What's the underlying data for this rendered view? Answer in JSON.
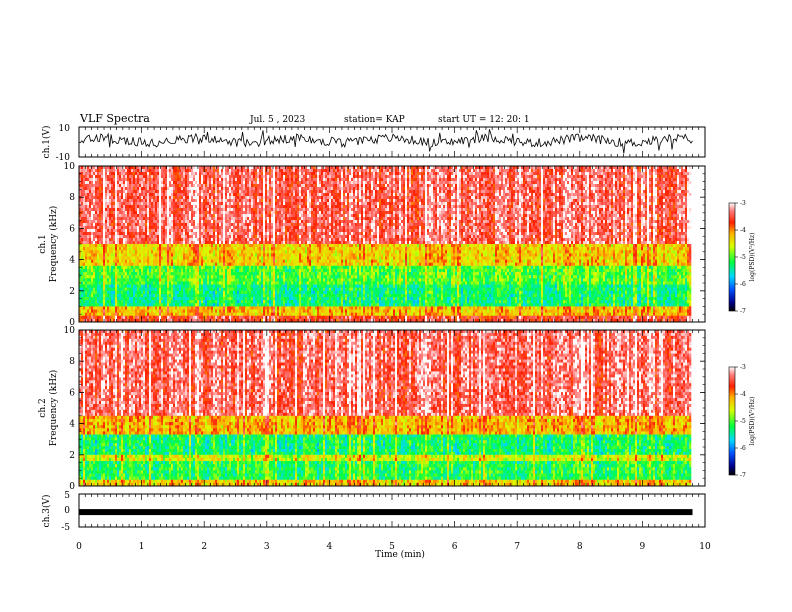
{
  "header": {
    "title": "VLF Spectra",
    "date": "Jul. 5 , 2023",
    "station": "station= KAP",
    "start_ut": "start UT = 12: 20: 1"
  },
  "chart_data": {
    "type": "heatmap",
    "title": "VLF Spectra",
    "x_axis": {
      "label": "Time (min)",
      "range": [
        0,
        10
      ],
      "ticks": [
        "0",
        "1",
        "2",
        "3",
        "4",
        "5",
        "6",
        "7",
        "8",
        "9",
        "10"
      ]
    },
    "data_end_min": 9.8,
    "panels": [
      {
        "name": "ch.1 waveform",
        "type": "line",
        "ylabel": "ch.1(V)",
        "ylim": [
          -10,
          10
        ],
        "yticks": [
          "10",
          "-10"
        ],
        "description_values": "noisy trace, roughly -5 to 7 V"
      },
      {
        "name": "ch.1 spectrogram",
        "type": "heatmap",
        "ylabel": "ch.1\nFrequency (kHz)",
        "ylabel_lines": [
          "ch.1",
          "Frequency (kHz)"
        ],
        "ylim": [
          0,
          10
        ],
        "yticks": [
          "10",
          "8",
          "6",
          "4",
          "2",
          "0"
        ],
        "colorbar": {
          "label": "log(PSD)(V²/Hz)",
          "range": [
            -7,
            -3
          ],
          "ticks": [
            "-3",
            "-4",
            "-5",
            "-6",
            "-7"
          ]
        },
        "bands_khz": [
          {
            "from": 5.0,
            "to": 10.0,
            "log_psd": -3.4
          },
          {
            "from": 3.6,
            "to": 5.0,
            "log_psd": -4.3
          },
          {
            "from": 2.4,
            "to": 3.6,
            "log_psd": -5.0
          },
          {
            "from": 1.0,
            "to": 2.4,
            "log_psd": -5.3
          },
          {
            "from": 0.4,
            "to": 1.0,
            "log_psd": -4.2
          },
          {
            "from": 0.0,
            "to": 0.4,
            "log_psd": -3.6
          }
        ]
      },
      {
        "name": "ch.2 spectrogram",
        "type": "heatmap",
        "ylabel": "ch.2\nFrequency (kHz)",
        "ylabel_lines": [
          "ch.2",
          "Frequency (kHz)"
        ],
        "ylim": [
          0,
          10
        ],
        "yticks": [
          "10",
          "8",
          "6",
          "4",
          "2",
          "0"
        ],
        "colorbar": {
          "label": "log(PSD)(V²/Hz)",
          "range": [
            -7,
            -3
          ],
          "ticks": [
            "-3",
            "-4",
            "-5",
            "-6",
            "-7"
          ]
        },
        "bands_khz": [
          {
            "from": 4.5,
            "to": 10.0,
            "log_psd": -3.4
          },
          {
            "from": 3.3,
            "to": 4.5,
            "log_psd": -4.2
          },
          {
            "from": 2.0,
            "to": 3.3,
            "log_psd": -5.3
          },
          {
            "from": 1.6,
            "to": 2.0,
            "log_psd": -4.6
          },
          {
            "from": 0.4,
            "to": 1.6,
            "log_psd": -5.2
          },
          {
            "from": 0.0,
            "to": 0.4,
            "log_psd": -4.3
          }
        ]
      },
      {
        "name": "ch.3 waveform",
        "type": "line",
        "ylabel": "ch.3(V)",
        "ylim": [
          -5,
          5
        ],
        "yticks": [
          "5",
          "0",
          "-5"
        ],
        "level_v": -0.5
      }
    ]
  },
  "colors": {
    "axis": "#000000",
    "trace": "#000000",
    "background": "#ffffff"
  }
}
